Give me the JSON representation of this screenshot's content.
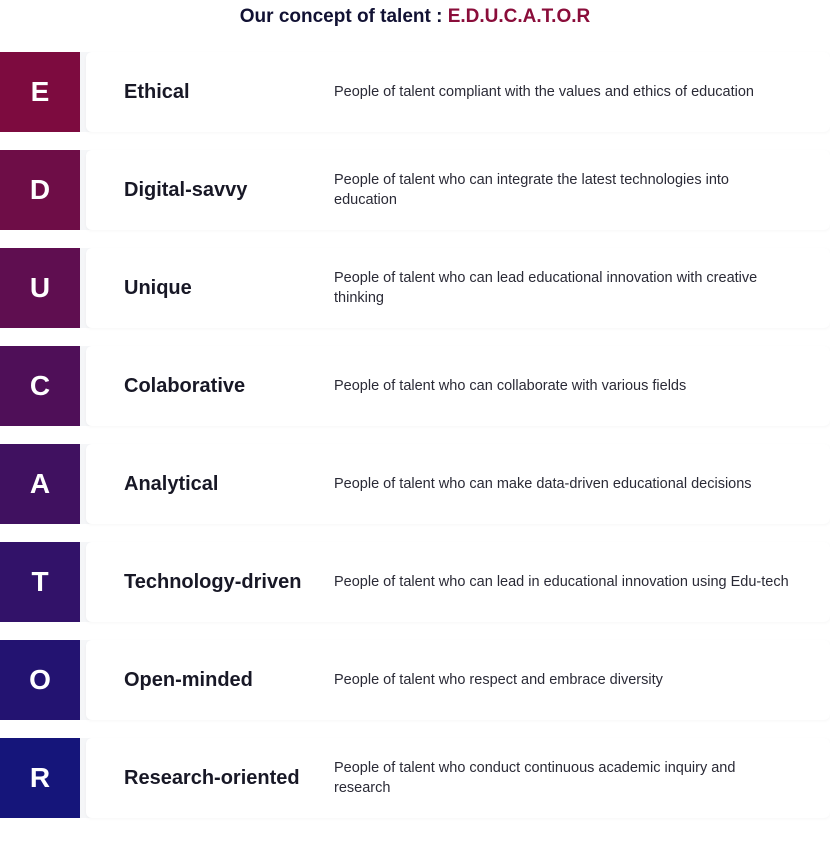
{
  "title": {
    "prefix": "Our concept of talent : ",
    "acronym": "E.D.U.C.A.T.O.R",
    "prefix_color": "#111133",
    "acronym_color": "#8a0d3a",
    "fontsize": 19
  },
  "layout": {
    "background_color": "#ffffff",
    "row_bg_color": "#f5f6f8",
    "content_bg_color": "#ffffff",
    "letter_box_size": 80,
    "letter_fontsize": 28,
    "letter_color": "#ffffff",
    "term_fontsize": 20,
    "term_color": "#181826",
    "term_width": 210,
    "desc_fontsize": 14.5,
    "desc_color": "#2a2a36",
    "row_gap": 18
  },
  "items": [
    {
      "letter": "E",
      "term": "Ethical",
      "desc": "People of talent compliant with the values and ethics of education",
      "color": "#7d0b3f"
    },
    {
      "letter": "D",
      "term": "Digital-savvy",
      "desc": "People of talent who can integrate the latest technologies into education",
      "color": "#6e0d47"
    },
    {
      "letter": "U",
      "term": "Unique",
      "desc": "People of talent who can lead educational innovation with creative thinking",
      "color": "#5f0e50"
    },
    {
      "letter": "C",
      "term": "Colaborative",
      "desc": "People of talent who can collaborate with various fields",
      "color": "#4f0f58"
    },
    {
      "letter": "A",
      "term": "Analytical",
      "desc": "People of talent who can make data-driven educational decisions",
      "color": "#401160"
    },
    {
      "letter": "T",
      "term": "Technology-driven",
      "desc": "People of talent who can lead in educational innovation using Edu-tech",
      "color": "#321269"
    },
    {
      "letter": "O",
      "term": "Open-minded",
      "desc": "People of talent who respect and embrace diversity",
      "color": "#231371"
    },
    {
      "letter": "R",
      "term": "Research-oriented",
      "desc": "People of talent who conduct continuous academic inquiry and research",
      "color": "#15157a"
    }
  ]
}
